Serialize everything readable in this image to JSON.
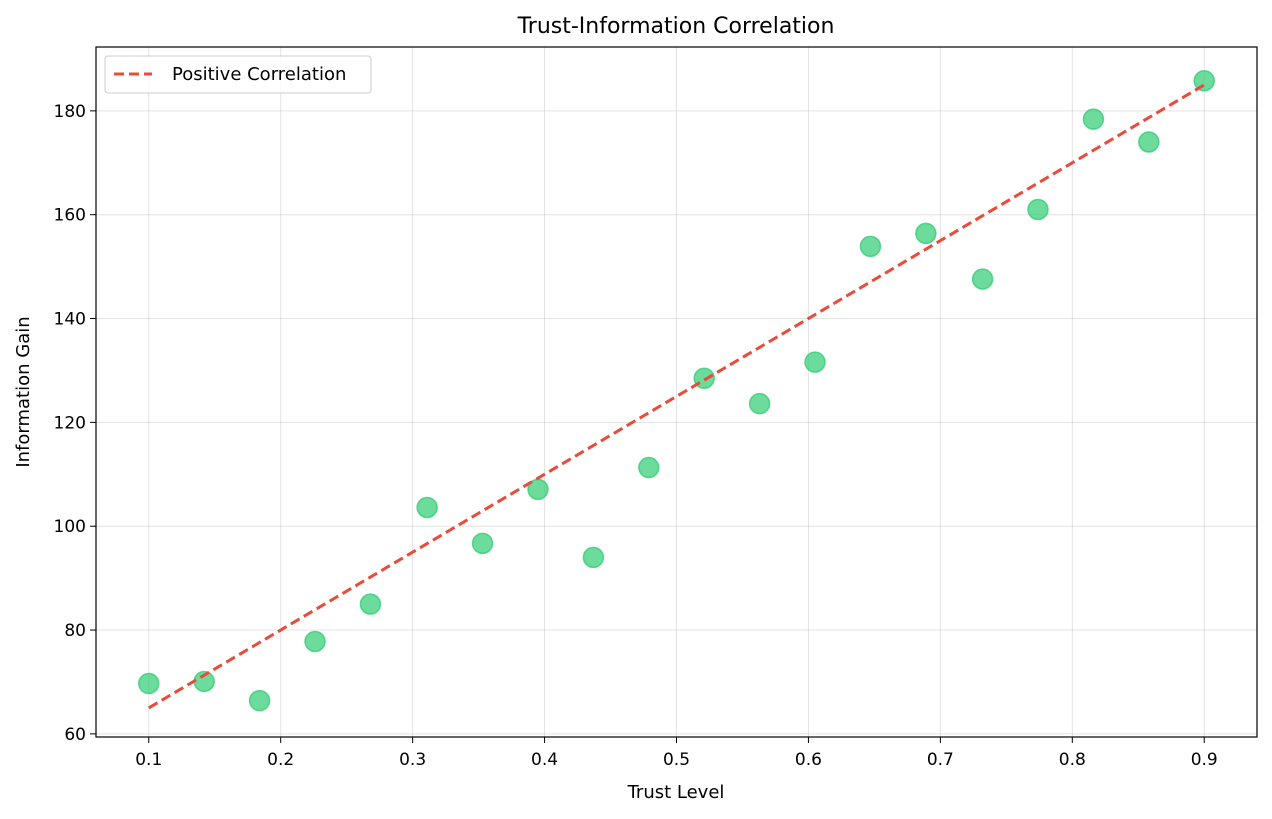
{
  "chart_data": {
    "type": "scatter",
    "title": "Trust-Information Correlation",
    "xlabel": "Trust Level",
    "ylabel": "Information Gain",
    "xlim": [
      0.06,
      0.94
    ],
    "ylim": [
      59.4,
      192.3
    ],
    "xticks": [
      0.1,
      0.2,
      0.3,
      0.4,
      0.5,
      0.6,
      0.7,
      0.8,
      0.9
    ],
    "yticks": [
      60,
      80,
      100,
      120,
      140,
      160,
      180
    ],
    "grid": true,
    "legend_position": "upper-left",
    "series": [
      {
        "kind": "scatter",
        "color": "#2ecc71",
        "x": [
          0.1,
          0.142,
          0.184,
          0.226,
          0.268,
          0.311,
          0.353,
          0.395,
          0.437,
          0.479,
          0.521,
          0.563,
          0.605,
          0.647,
          0.689,
          0.732,
          0.774,
          0.816,
          0.858,
          0.9
        ],
        "y": [
          69.7,
          70.1,
          66.4,
          77.8,
          85.0,
          103.6,
          96.7,
          107.1,
          94.0,
          111.3,
          128.5,
          123.6,
          131.6,
          153.9,
          156.4,
          147.6,
          161.0,
          178.4,
          174.0,
          185.8
        ]
      },
      {
        "kind": "line",
        "name": "Positive Correlation",
        "color": "#e74c3c",
        "style": "dashed",
        "x": [
          0.1,
          0.9
        ],
        "y": [
          65.0,
          185.0
        ]
      }
    ]
  }
}
